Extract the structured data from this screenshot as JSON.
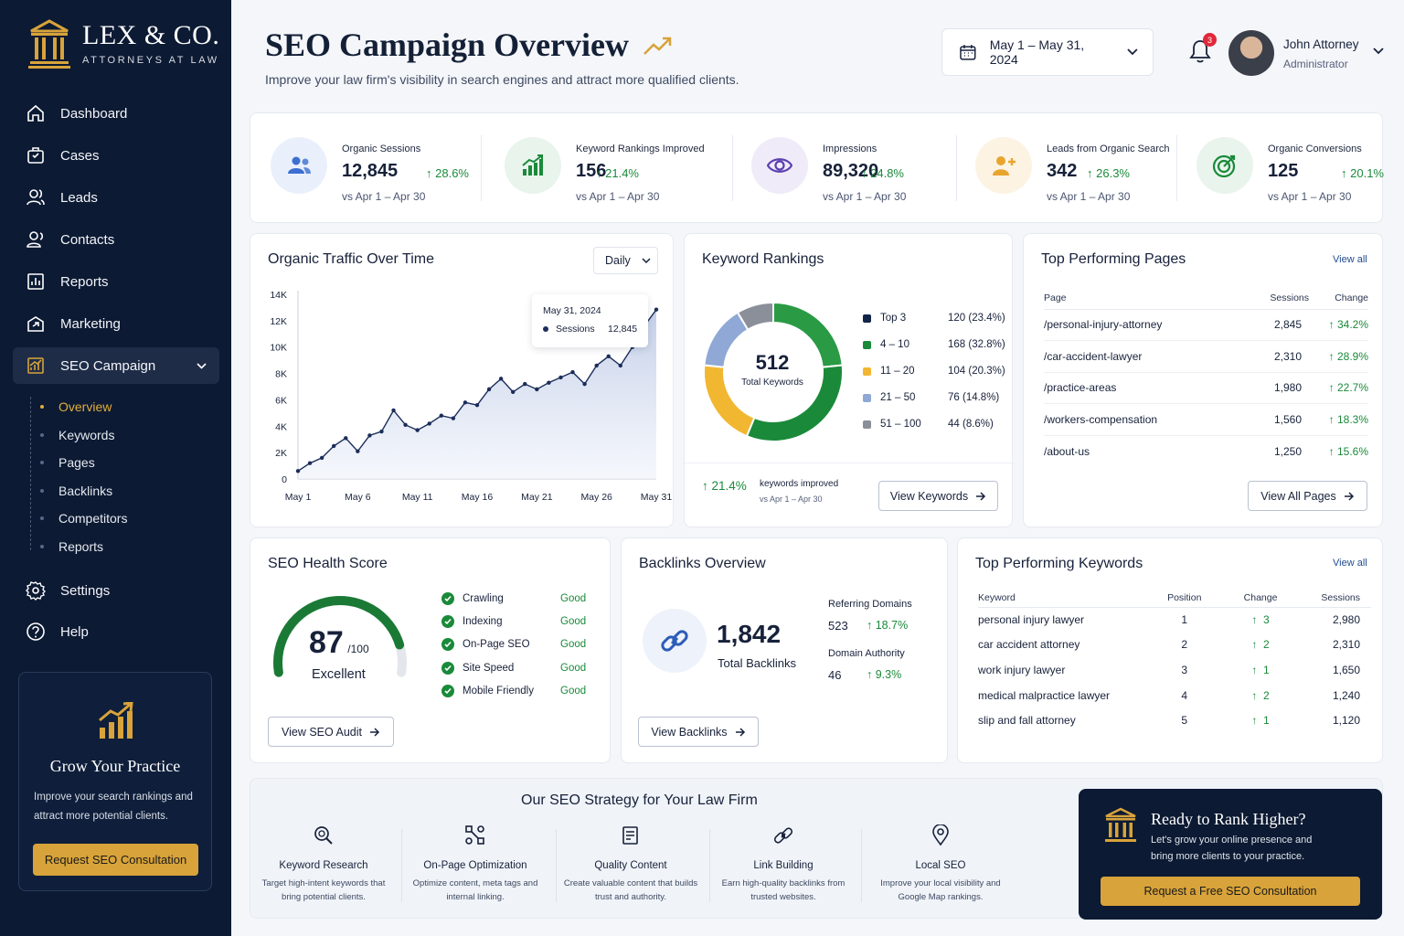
{
  "brand": {
    "name": "LEX & CO.",
    "tagline": "ATTORNEYS AT LAW"
  },
  "sidebar": {
    "items": [
      {
        "label": "Dashboard",
        "icon": "home-icon"
      },
      {
        "label": "Cases",
        "icon": "briefcase-icon"
      },
      {
        "label": "Leads",
        "icon": "users-icon"
      },
      {
        "label": "Contacts",
        "icon": "contacts-icon"
      },
      {
        "label": "Reports",
        "icon": "report-icon"
      },
      {
        "label": "Marketing",
        "icon": "megaphone-icon"
      },
      {
        "label": "SEO Campaign",
        "icon": "chart-icon",
        "active": true
      }
    ],
    "subitems": [
      "Overview",
      "Keywords",
      "Pages",
      "Backlinks",
      "Competitors",
      "Reports"
    ],
    "active_subitem": "Overview",
    "bottom_items": [
      {
        "label": "Settings",
        "icon": "gear-icon"
      },
      {
        "label": "Help",
        "icon": "help-icon"
      }
    ],
    "promo": {
      "title": "Grow Your Practice",
      "text": "Improve your search rankings and attract more potential clients.",
      "button": "Request SEO Consultation"
    }
  },
  "header": {
    "title": "SEO Campaign Overview",
    "subtitle": "Improve your law firm's visibility in search engines and attract more qualified clients.",
    "date_range": "May 1 – May 31, 2024",
    "notifications": "3",
    "user": {
      "name": "John Attorney",
      "role": "Administrator"
    }
  },
  "kpis": [
    {
      "label": "Organic Sessions",
      "value": "12,845",
      "change": "28.6%",
      "compare": "vs Apr 1 – Apr 30",
      "icon": "users-icon",
      "color": "#3b6fd1",
      "bg": "#eaf0fb"
    },
    {
      "label": "Keyword Rankings Improved",
      "value": "156",
      "change": "21.4%",
      "compare": "vs Apr 1 – Apr 30",
      "icon": "bar-chart-icon",
      "color": "#1a8a3a",
      "bg": "#e8f4ec"
    },
    {
      "label": "Impressions",
      "value": "89,320",
      "change": "24.8%",
      "compare": "vs Apr 1 – Apr 30",
      "icon": "eye-icon",
      "color": "#5b3fb0",
      "bg": "#efebf8"
    },
    {
      "label": "Leads from Organic Search",
      "value": "342",
      "change": "26.3%",
      "compare": "vs Apr 1 – Apr 30",
      "icon": "user-plus-icon",
      "color": "#e8a52e",
      "bg": "#fcf3e3"
    },
    {
      "label": "Organic Conversions",
      "value": "125",
      "change": "20.1%",
      "compare": "vs Apr 1 – Apr 30",
      "icon": "target-icon",
      "color": "#1a8a3a",
      "bg": "#e8f4ec"
    }
  ],
  "traffic": {
    "title": "Organic Traffic Over Time",
    "period": "Daily",
    "tooltip": {
      "date": "May 31, 2024",
      "label": "Sessions",
      "value": "12,845"
    }
  },
  "chart_data": {
    "type": "area",
    "title": "Organic Traffic Over Time",
    "x_ticks": [
      "May 1",
      "May 6",
      "May 11",
      "May 16",
      "May 21",
      "May 26",
      "May 31"
    ],
    "y_ticks": [
      "0",
      "2K",
      "4K",
      "6K",
      "8K",
      "10K",
      "12K",
      "14K"
    ],
    "ylim": [
      0,
      14000
    ],
    "grid": false,
    "series": [
      {
        "name": "Sessions",
        "values": [
          600,
          1200,
          1600,
          2500,
          3100,
          2100,
          3300,
          3600,
          5200,
          4100,
          3700,
          4200,
          4800,
          4600,
          5800,
          5600,
          6800,
          7600,
          6600,
          7200,
          6800,
          7300,
          7700,
          8100,
          7200,
          8600,
          9300,
          8600,
          10000,
          11600,
          12845
        ]
      }
    ]
  },
  "keywords": {
    "title": "Keyword Rankings",
    "total": "512",
    "total_label": "Total Keywords",
    "legend": [
      {
        "label": "Top 3",
        "value": "120 (23.4%)",
        "count": 120,
        "color": "#122548"
      },
      {
        "label": "4 – 10",
        "value": "168 (32.8%)",
        "count": 168,
        "color": "#1a8a3a"
      },
      {
        "label": "11 – 20",
        "value": "104 (20.3%)",
        "count": 104,
        "color": "#f2b731"
      },
      {
        "label": "21 – 50",
        "value": "76 (14.8%)",
        "count": 76,
        "color": "#8fa8d6"
      },
      {
        "label": "51 – 100",
        "value": "44 (8.6%)",
        "count": 44,
        "color": "#8a8f99"
      }
    ],
    "improved_pct": "21.4%",
    "improved_label": "keywords improved",
    "improved_compare": "vs Apr 1 – Apr 30",
    "button": "View Keywords"
  },
  "top_pages": {
    "title": "Top Performing Pages",
    "view_all": "View all",
    "columns": [
      "Page",
      "Sessions",
      "Change"
    ],
    "rows": [
      [
        "/personal-injury-attorney",
        "2,845",
        "34.2%"
      ],
      [
        "/car-accident-lawyer",
        "2,310",
        "28.9%"
      ],
      [
        "/practice-areas",
        "1,980",
        "22.7%"
      ],
      [
        "/workers-compensation",
        "1,560",
        "18.3%"
      ],
      [
        "/about-us",
        "1,250",
        "15.6%"
      ]
    ],
    "button": "View All Pages"
  },
  "health": {
    "title": "SEO Health Score",
    "score": "87",
    "max": "/100",
    "score_fraction": 0.87,
    "label": "Excellent",
    "checks": [
      {
        "label": "Crawling",
        "status": "Good"
      },
      {
        "label": "Indexing",
        "status": "Good"
      },
      {
        "label": "On-Page SEO",
        "status": "Good"
      },
      {
        "label": "Site Speed",
        "status": "Good"
      },
      {
        "label": "Mobile Friendly",
        "status": "Good"
      }
    ],
    "button": "View SEO Audit"
  },
  "backlinks": {
    "title": "Backlinks Overview",
    "total": "1,842",
    "total_label": "Total Backlinks",
    "referring_label": "Referring Domains",
    "referring_value": "523",
    "referring_change": "18.7%",
    "authority_label": "Domain Authority",
    "authority_value": "46",
    "authority_change": "9.3%",
    "button": "View Backlinks"
  },
  "top_keywords": {
    "title": "Top Performing Keywords",
    "view_all": "View all",
    "columns": [
      "Keyword",
      "Position",
      "Change",
      "Sessions"
    ],
    "rows": [
      [
        "personal injury lawyer",
        "1",
        "3",
        "2,980"
      ],
      [
        "car accident attorney",
        "2",
        "2",
        "2,310"
      ],
      [
        "work injury lawyer",
        "3",
        "1",
        "1,650"
      ],
      [
        "medical malpractice lawyer",
        "4",
        "2",
        "1,240"
      ],
      [
        "slip and fall attorney",
        "5",
        "1",
        "1,120"
      ]
    ]
  },
  "strategy": {
    "title": "Our SEO Strategy for Your Law Firm",
    "items": [
      {
        "title": "Keyword Research",
        "desc": "Target high-intent keywords that bring potential clients.",
        "icon": "search-icon"
      },
      {
        "title": "On-Page Optimization",
        "desc": "Optimize content, meta tags and internal linking.",
        "icon": "nodes-icon"
      },
      {
        "title": "Quality Content",
        "desc": "Create valuable content that builds trust and authority.",
        "icon": "document-icon"
      },
      {
        "title": "Link Building",
        "desc": "Earn high-quality backlinks from trusted websites.",
        "icon": "link-icon"
      },
      {
        "title": "Local SEO",
        "desc": "Improve your local visibility and Google Map rankings.",
        "icon": "map-pin-icon"
      }
    ]
  },
  "cta": {
    "title": "Ready to Rank Higher?",
    "text": "Let's grow your online presence and bring more clients to your practice.",
    "button": "Request a Free SEO Consultation"
  }
}
